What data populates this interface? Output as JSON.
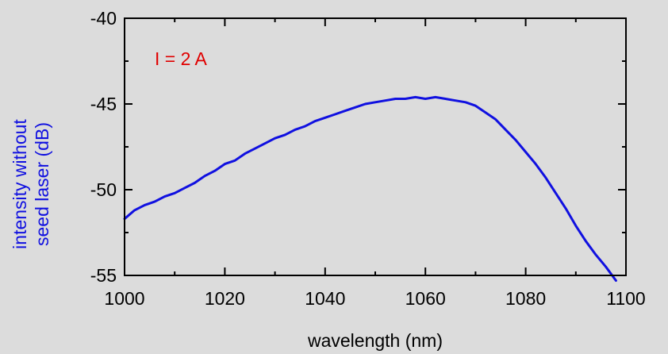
{
  "chart_data": {
    "type": "line",
    "title": "",
    "xlabel": "wavelength (nm)",
    "ylabel_lines": [
      "intensity without",
      "seed laser (dB)"
    ],
    "xlim": [
      1000,
      1100
    ],
    "ylim": [
      -55,
      -40
    ],
    "x_ticks": [
      1000,
      1020,
      1040,
      1060,
      1080,
      1100
    ],
    "y_ticks": [
      -40,
      -45,
      -50,
      -55
    ],
    "grid": false,
    "annotation": "I = 2 A",
    "colors": {
      "series": "#1010e0",
      "annotation": "#e00000",
      "ylabel": "#1010e0",
      "axis": "#000000"
    },
    "series": [
      {
        "x": [
          1000,
          1002,
          1004,
          1006,
          1008,
          1010,
          1012,
          1014,
          1016,
          1018,
          1020,
          1022,
          1024,
          1026,
          1028,
          1030,
          1032,
          1034,
          1036,
          1038,
          1040,
          1042,
          1044,
          1046,
          1048,
          1050,
          1052,
          1054,
          1056,
          1058,
          1060,
          1062,
          1064,
          1066,
          1068,
          1070,
          1072,
          1074,
          1076,
          1078,
          1080,
          1082,
          1084,
          1086,
          1088,
          1090,
          1092,
          1094,
          1096,
          1098
        ],
        "y": [
          -51.7,
          -51.2,
          -50.9,
          -50.7,
          -50.4,
          -50.2,
          -49.9,
          -49.6,
          -49.2,
          -48.9,
          -48.5,
          -48.3,
          -47.9,
          -47.6,
          -47.3,
          -47.0,
          -46.8,
          -46.5,
          -46.3,
          -46.0,
          -45.8,
          -45.6,
          -45.4,
          -45.2,
          -45.0,
          -44.9,
          -44.8,
          -44.7,
          -44.7,
          -44.6,
          -44.7,
          -44.6,
          -44.7,
          -44.8,
          -44.9,
          -45.1,
          -45.5,
          -45.9,
          -46.5,
          -47.1,
          -47.8,
          -48.5,
          -49.3,
          -50.2,
          -51.1,
          -52.1,
          -53.0,
          -53.8,
          -54.5,
          -55.3
        ]
      }
    ]
  }
}
